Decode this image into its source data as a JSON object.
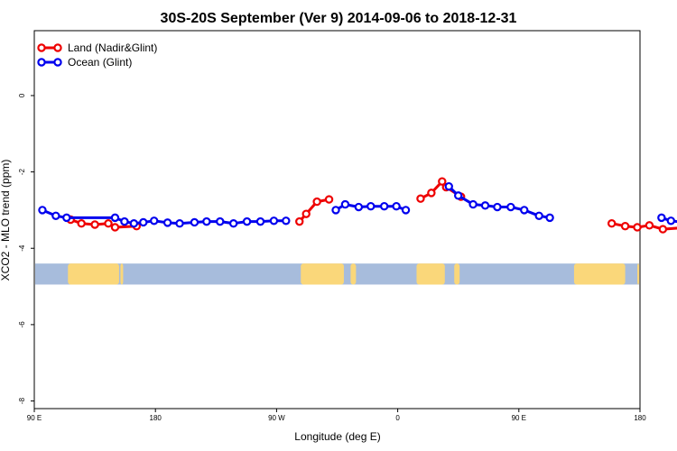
{
  "chart_data": {
    "type": "line",
    "title": "30S-20S September (Ver 9)   2014-09-06 to 2018-12-31",
    "xlabel": "Longitude (deg E)",
    "ylabel": "XCO2 - MLO trend (ppm)",
    "xlim": [
      90,
      540
    ],
    "ylim": [
      -8.2,
      1.7
    ],
    "x_ticks": [
      {
        "value": 90,
        "label": "90 E"
      },
      {
        "value": 180,
        "label": "180"
      },
      {
        "value": 270,
        "label": "90 W"
      },
      {
        "value": 360,
        "label": "0"
      },
      {
        "value": 450,
        "label": "90 E"
      },
      {
        "value": 540,
        "label": "180"
      }
    ],
    "y_ticks": [
      {
        "value": 0,
        "label": "0"
      },
      {
        "value": -2,
        "label": "-2"
      },
      {
        "value": -4,
        "label": "-4"
      },
      {
        "value": -6,
        "label": "-6"
      },
      {
        "value": -8,
        "label": "-8"
      }
    ],
    "grid": false,
    "legend_position": "top-left",
    "map_strip": {
      "y_range": [
        -4.4,
        -4.95
      ],
      "ocean_color": "#a7bcdc",
      "land_color": "#fad77a",
      "land_x_ranges": [
        [
          115,
          153
        ],
        [
          154,
          156
        ],
        [
          288,
          320
        ],
        [
          325,
          329
        ],
        [
          374,
          395
        ],
        [
          402,
          406
        ],
        [
          491,
          529
        ],
        [
          538,
          541
        ]
      ]
    },
    "series": [
      {
        "name": "Land (Nadir&Glint)",
        "color": "#ee0000",
        "segments": [
          [
            [
              117,
              -3.25
            ],
            [
              125,
              -3.35
            ],
            [
              135,
              -3.38
            ],
            [
              145,
              -3.35
            ],
            [
              150,
              -3.45
            ],
            [
              166,
              -3.42
            ]
          ],
          [
            [
              287,
              -3.3
            ],
            [
              292,
              -3.1
            ],
            [
              300,
              -2.78
            ],
            [
              309,
              -2.72
            ]
          ],
          [
            [
              377,
              -2.7
            ],
            [
              385,
              -2.55
            ],
            [
              393,
              -2.25
            ],
            [
              396,
              -2.4
            ],
            [
              407,
              -2.65
            ]
          ],
          [
            [
              519,
              -3.35
            ],
            [
              529,
              -3.42
            ],
            [
              538,
              -3.45
            ],
            [
              547,
              -3.4
            ],
            [
              557,
              -3.5
            ],
            [
              576,
              -3.45
            ]
          ]
        ]
      },
      {
        "name": "Ocean (Glint)",
        "color": "#0000ee",
        "segments": [
          [
            [
              96,
              -3.0
            ],
            [
              106,
              -3.15
            ],
            [
              114,
              -3.2
            ],
            [
              150,
              -3.2
            ],
            [
              157,
              -3.3
            ],
            [
              164,
              -3.35
            ],
            [
              171,
              -3.32
            ],
            [
              179,
              -3.28
            ],
            [
              189,
              -3.33
            ],
            [
              198,
              -3.35
            ],
            [
              209,
              -3.32
            ],
            [
              218,
              -3.3
            ],
            [
              228,
              -3.3
            ],
            [
              238,
              -3.35
            ],
            [
              248,
              -3.3
            ],
            [
              258,
              -3.3
            ],
            [
              268,
              -3.28
            ],
            [
              277,
              -3.28
            ]
          ],
          [
            [
              314,
              -3.0
            ],
            [
              321,
              -2.85
            ],
            [
              331,
              -2.92
            ],
            [
              340,
              -2.9
            ],
            [
              350,
              -2.9
            ],
            [
              359,
              -2.9
            ],
            [
              366,
              -3.0
            ]
          ],
          [
            [
              398,
              -2.38
            ],
            [
              405,
              -2.62
            ],
            [
              416,
              -2.85
            ],
            [
              425,
              -2.88
            ],
            [
              434,
              -2.92
            ],
            [
              444,
              -2.92
            ],
            [
              454,
              -3.0
            ],
            [
              465,
              -3.15
            ],
            [
              473,
              -3.2
            ]
          ],
          [
            [
              556,
              -3.2
            ],
            [
              563,
              -3.28
            ],
            [
              572,
              -3.32
            ],
            [
              581,
              -3.32
            ]
          ]
        ]
      }
    ]
  }
}
